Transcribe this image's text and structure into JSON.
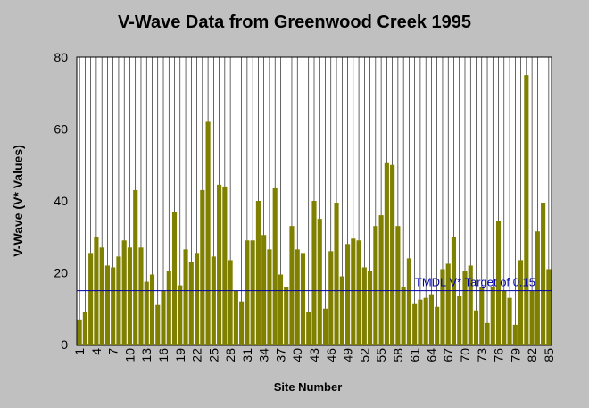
{
  "chart_data": {
    "type": "bar",
    "title": "V-Wave Data from Greenwood Creek 1995",
    "xlabel": "Site Number",
    "ylabel": "V-Wave (V* Values)",
    "ylim": [
      0,
      80
    ],
    "yticks": [
      0,
      20,
      40,
      60,
      80
    ],
    "grid": "vertical",
    "bar_color": "#808000",
    "ref_color": "#0000aa",
    "categories": [
      "1",
      "2",
      "3",
      "4",
      "5",
      "6",
      "7",
      "8",
      "9",
      "10",
      "11",
      "12",
      "13",
      "14",
      "15",
      "16",
      "17",
      "18",
      "19",
      "20",
      "21",
      "22",
      "23",
      "24",
      "25",
      "26",
      "27",
      "28",
      "29",
      "30",
      "31",
      "32",
      "33",
      "34",
      "35",
      "36",
      "37",
      "38",
      "39",
      "40",
      "41",
      "42",
      "43",
      "44",
      "45",
      "46",
      "47",
      "48",
      "49",
      "50",
      "51",
      "52",
      "53",
      "54",
      "55",
      "56",
      "57",
      "58",
      "59",
      "60",
      "61",
      "62",
      "63",
      "64",
      "65",
      "66",
      "67",
      "68",
      "69",
      "70",
      "71",
      "72",
      "73",
      "74",
      "75",
      "76",
      "77",
      "78",
      "79",
      "80",
      "81",
      "82",
      "83",
      "84",
      "85"
    ],
    "tick_labels": [
      "1",
      "4",
      "7",
      "10",
      "13",
      "16",
      "19",
      "22",
      "25",
      "28",
      "31",
      "34",
      "37",
      "40",
      "43",
      "46",
      "49",
      "52",
      "55",
      "58",
      "61",
      "64",
      "67",
      "70",
      "73",
      "76",
      "79",
      "82",
      "85"
    ],
    "values": [
      7,
      9,
      25.5,
      30,
      27,
      22,
      21.5,
      24.5,
      29,
      27,
      43,
      27,
      17.5,
      19.5,
      11,
      15,
      20.5,
      37,
      16.5,
      26.5,
      23,
      25.5,
      43,
      62,
      24.5,
      44.5,
      44,
      23.5,
      15,
      12,
      29,
      29,
      40,
      30.5,
      26.5,
      43.5,
      19.5,
      16,
      33,
      26.5,
      25.5,
      9,
      40,
      35,
      10,
      26,
      39.5,
      19,
      28,
      29.5,
      29,
      21.5,
      20.5,
      33,
      36,
      50.5,
      50,
      33,
      16,
      24,
      11.5,
      12.5,
      13,
      14,
      10.5,
      21,
      22.5,
      30,
      13.5,
      20.5,
      22,
      9.5,
      16,
      6,
      16,
      34.5,
      15,
      13,
      5.5,
      23.5,
      75,
      15,
      31.5,
      39.5,
      21
    ],
    "reference_line": {
      "value": 15,
      "label": "TMDL V* Target of 0.15"
    }
  }
}
